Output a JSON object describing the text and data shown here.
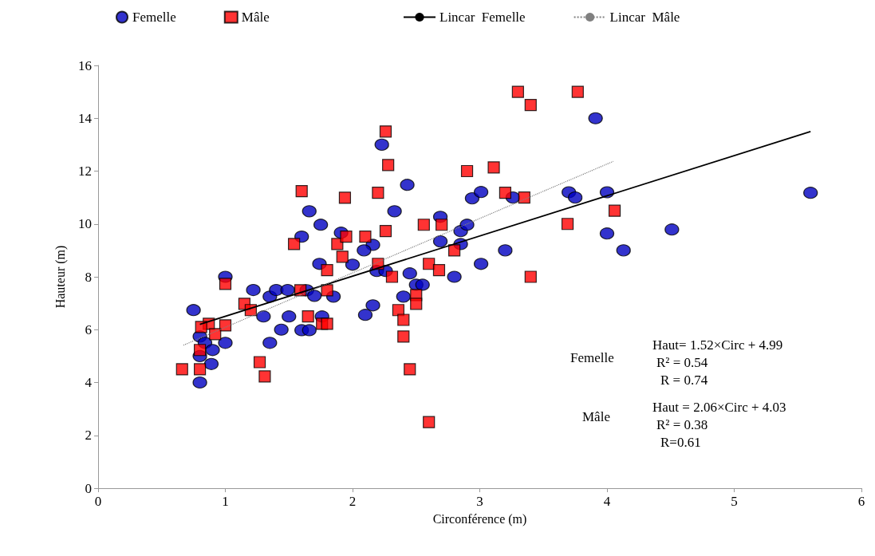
{
  "chart_data": {
    "type": "scatter",
    "xlabel": "Circonférence (m)",
    "ylabel": "Hauteur (m)",
    "xlim": [
      0,
      6
    ],
    "xticks": [
      0,
      1,
      2,
      3,
      4,
      5,
      6
    ],
    "ylim": [
      0,
      16
    ],
    "yticks": [
      0,
      2,
      4,
      6,
      8,
      10,
      12,
      14,
      16
    ],
    "grid": false,
    "legend": "top",
    "series": [
      {
        "name": "Femelle",
        "marker": "circle",
        "color": "#0000c0",
        "x": [
          0.75,
          0.8,
          0.8,
          0.8,
          0.84,
          0.89,
          0.9,
          1.0,
          1.0,
          1.22,
          1.35,
          1.4,
          1.49,
          1.3,
          1.35,
          1.44,
          1.5,
          1.64,
          1.7,
          1.85,
          1.76,
          1.6,
          1.66,
          2.23,
          2.43,
          1.66,
          2.33,
          1.75,
          1.6,
          1.91,
          2.16,
          2.09,
          1.74,
          2.0,
          2.19,
          2.26,
          2.45,
          2.5,
          2.55,
          2.4,
          2.8,
          2.69,
          2.69,
          2.85,
          2.9,
          2.85,
          3.01,
          2.94,
          3.01,
          3.2,
          2.16,
          2.1,
          3.26,
          3.7,
          3.75,
          4.0,
          5.6,
          4.0,
          4.13,
          4.51,
          3.91
        ],
        "values": [
          6.74,
          5.74,
          5.0,
          4.0,
          5.5,
          4.7,
          5.23,
          8.0,
          5.5,
          7.5,
          7.25,
          7.5,
          7.5,
          6.5,
          5.5,
          6.0,
          6.5,
          7.49,
          7.28,
          7.25,
          6.5,
          5.98,
          5.98,
          13.0,
          11.48,
          10.48,
          10.48,
          9.97,
          9.52,
          9.67,
          9.21,
          9.0,
          8.49,
          8.46,
          8.22,
          8.22,
          8.13,
          7.7,
          7.7,
          7.25,
          8.0,
          10.27,
          9.34,
          9.73,
          9.97,
          9.24,
          8.49,
          10.97,
          11.21,
          9.0,
          6.92,
          6.56,
          11.0,
          11.2,
          11.0,
          11.2,
          11.18,
          9.64,
          9.0,
          9.79,
          14.0
        ]
      },
      {
        "name": "Mâle",
        "marker": "square",
        "color": "#ff0000",
        "x": [
          1.0,
          1.15,
          1.2,
          0.87,
          0.81,
          1.0,
          0.92,
          0.8,
          0.66,
          0.8,
          1.27,
          1.31,
          2.26,
          2.28,
          2.2,
          1.6,
          1.94,
          2.9,
          3.11,
          2.26,
          2.56,
          2.7,
          1.54,
          1.88,
          1.95,
          2.1,
          1.92,
          1.8,
          2.2,
          2.31,
          2.6,
          2.68,
          2.8,
          1.59,
          1.8,
          1.65,
          1.76,
          1.8,
          2.5,
          2.5,
          2.36,
          2.4,
          2.4,
          2.45,
          2.6,
          3.3,
          3.4,
          3.77,
          3.2,
          3.35,
          3.69,
          4.06,
          3.4
        ],
        "values": [
          7.73,
          6.98,
          6.74,
          6.22,
          6.1,
          6.16,
          5.83,
          5.23,
          4.5,
          4.5,
          4.77,
          4.23,
          13.5,
          12.23,
          11.18,
          11.24,
          10.99,
          12.0,
          12.14,
          9.73,
          9.97,
          9.97,
          9.24,
          9.24,
          9.52,
          9.52,
          8.76,
          8.25,
          8.49,
          8.0,
          8.49,
          8.25,
          9.0,
          7.49,
          7.49,
          6.5,
          6.22,
          6.22,
          7.31,
          6.98,
          6.74,
          6.37,
          5.74,
          4.5,
          2.5,
          15.0,
          14.5,
          15.0,
          11.18,
          11.0,
          10.0,
          10.5,
          8.0
        ]
      },
      {
        "name": "Lincar  Femelle",
        "type": "line",
        "marker": "none",
        "line_style": "solid",
        "color": "#000000",
        "x": [
          0.8,
          5.6
        ],
        "values": [
          6.2,
          13.5
        ]
      },
      {
        "name": "Lincar  Mâle",
        "type": "line",
        "marker": "none",
        "line_style": "dotted",
        "color": "#808080",
        "x": [
          0.67,
          4.05
        ],
        "values": [
          5.41,
          12.37
        ]
      }
    ],
    "annotations": [
      "Femelle",
      "Haut= 1.52×Circ + 4.99",
      "R² = 0.54",
      "R = 0.74",
      "Mâle",
      "Haut = 2.06×Circ + 4.03",
      "R² = 0.38",
      "R=0.61"
    ]
  }
}
